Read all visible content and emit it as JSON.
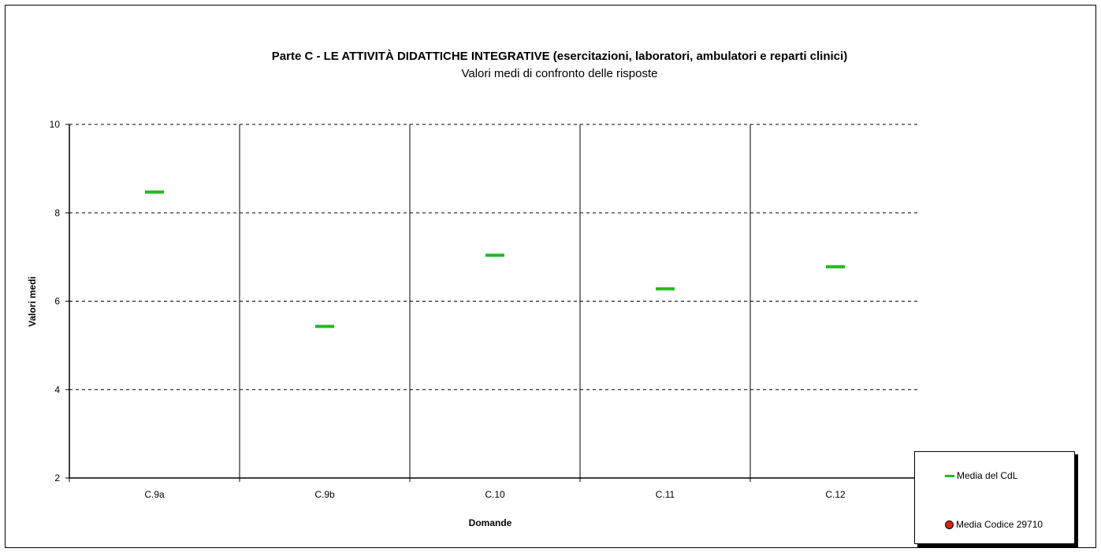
{
  "chart_data": {
    "type": "scatter",
    "title": "Parte C - LE ATTIVITÀ DIDATTICHE INTEGRATIVE (esercitazioni, laboratori, ambulatori e reparti clinici)",
    "subtitle": "Valori medi di confronto delle risposte",
    "xlabel": "Domande",
    "ylabel": "Valori medi",
    "categories": [
      "C.9a",
      "C.9b",
      "C.10",
      "C.11",
      "C.12"
    ],
    "ylim": [
      2,
      10
    ],
    "yticks": [
      "10",
      "8",
      "6",
      "4",
      "2"
    ],
    "grid": true,
    "legend_position": "bottom-right",
    "series": [
      {
        "name": "Media del CdL",
        "marker": "dash",
        "color": "#22bb22",
        "values": [
          8.47,
          5.43,
          7.04,
          6.28,
          6.78
        ]
      },
      {
        "name": "Media Codice 29710",
        "marker": "circle",
        "color": "#dd2200",
        "values": []
      }
    ]
  }
}
